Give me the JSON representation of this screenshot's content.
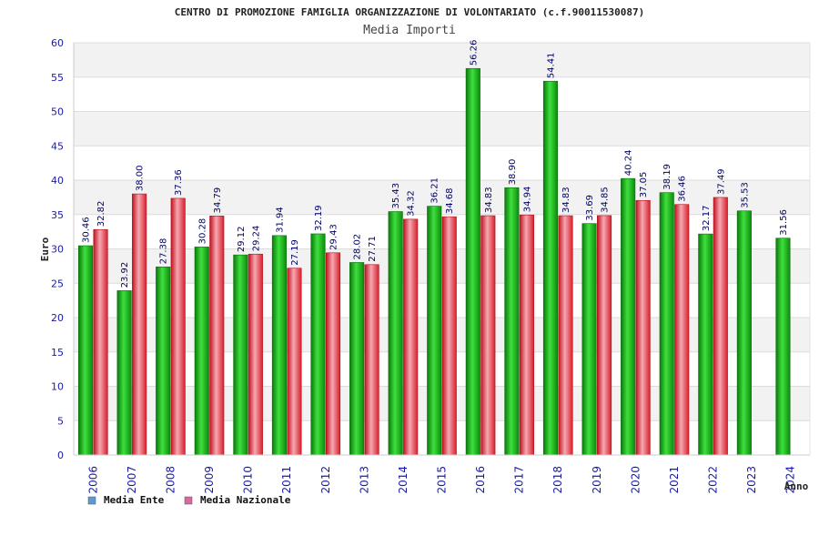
{
  "chart_data": {
    "type": "bar",
    "title": "CENTRO DI PROMOZIONE FAMIGLIA ORGANIZZAZIONE DI VOLONTARIATO (c.f.90011530087)",
    "subtitle": "Media Importi",
    "xlabel": "Anno",
    "ylabel": "Euro",
    "ylim": [
      0,
      60
    ],
    "yticks": [
      0,
      5,
      10,
      15,
      20,
      25,
      30,
      35,
      40,
      45,
      50,
      55,
      60
    ],
    "grid": true,
    "legend_position": "bottom-left",
    "categories": [
      "2006",
      "2007",
      "2008",
      "2009",
      "2010",
      "2011",
      "2012",
      "2013",
      "2014",
      "2015",
      "2016",
      "2017",
      "2018",
      "2019",
      "2020",
      "2021",
      "2022",
      "2023",
      "2024"
    ],
    "series": [
      {
        "name": "Media Ente",
        "legend_color": "#5b9bd5",
        "bar_color": "#1aa51a",
        "values": [
          30.46,
          23.92,
          27.38,
          30.28,
          29.12,
          31.94,
          32.19,
          28.02,
          35.43,
          36.21,
          56.26,
          38.9,
          54.41,
          33.69,
          40.24,
          38.19,
          32.17,
          35.53,
          31.56
        ],
        "labels": [
          "30.46",
          "23.92",
          "27.38",
          "30.28",
          "29.12",
          "31.94",
          "32.19",
          "28.02",
          "35.43",
          "36.21",
          "56.26",
          "38.90",
          "54.41",
          "33.69",
          "40.24",
          "38.19",
          "32.17",
          "35.53",
          "31.56"
        ]
      },
      {
        "name": "Media Nazionale",
        "legend_color": "#d96aa0",
        "bar_color": "#e0303a",
        "values": [
          32.82,
          38.0,
          37.36,
          34.79,
          29.24,
          27.19,
          29.43,
          27.71,
          34.32,
          34.68,
          34.83,
          34.94,
          34.83,
          34.85,
          37.05,
          36.46,
          37.49,
          null,
          null
        ],
        "labels": [
          "32.82",
          "38.00",
          "37.36",
          "34.79",
          "29.24",
          "27.19",
          "29.43",
          "27.71",
          "34.32",
          "34.68",
          "34.83",
          "34.94",
          "34.83",
          "34.85",
          "37.05",
          "36.46",
          "37.49",
          null,
          null
        ]
      }
    ]
  }
}
